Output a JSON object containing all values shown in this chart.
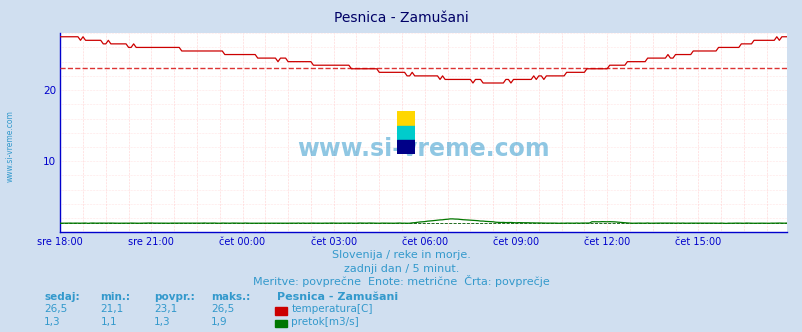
{
  "title": "Pesnica - Zamušani",
  "title_color": "#000066",
  "bg_color": "#d0dff0",
  "plot_bg_color": "#ffffff",
  "grid_color_v": "#ffaaaa",
  "grid_color_h": "#ffcccc",
  "figsize": [
    8.03,
    3.32
  ],
  "dpi": 100,
  "xlim": [
    0,
    287
  ],
  "ylim": [
    0,
    28
  ],
  "yticks": [
    10,
    20
  ],
  "xtick_labels": [
    "sre 18:00",
    "sre 21:00",
    "čet 00:00",
    "čet 03:00",
    "čet 06:00",
    "čet 09:00",
    "čet 12:00",
    "čet 15:00"
  ],
  "xtick_positions": [
    0,
    36,
    72,
    108,
    144,
    180,
    216,
    252
  ],
  "temp_color": "#cc0000",
  "flow_color": "#007700",
  "avg_temp_color": "#dd3333",
  "avg_flow_color": "#005500",
  "axis_color": "#0000cc",
  "watermark": "www.si-vreme.com",
  "watermark_color": "#3399cc",
  "watermark_alpha": 0.55,
  "subtitle1": "Slovenija / reke in morje.",
  "subtitle2": "zadnji dan / 5 minut.",
  "subtitle3": "Meritve: povprečne  Enote: metrične  Črta: povprečje",
  "subtitle_color": "#3399cc",
  "legend_title": "Pesnica - Zamušani",
  "legend_color": "#3399cc",
  "table_headers": [
    "sedaj:",
    "min.:",
    "povpr.:",
    "maks.:"
  ],
  "table_temp": [
    "26,5",
    "21,1",
    "23,1",
    "26,5"
  ],
  "table_flow": [
    "1,3",
    "1,1",
    "1,3",
    "1,9"
  ],
  "temp_avg_value": 23.1,
  "flow_avg_value": 1.3,
  "ylabel_text": "www.si-vreme.com",
  "ylabel_color": "#3399cc",
  "logo_colors": [
    "#FFD700",
    "#00CCCC",
    "#0000AA"
  ],
  "temp_label": "temperatura[C]",
  "flow_label": "pretok[m3/s]"
}
